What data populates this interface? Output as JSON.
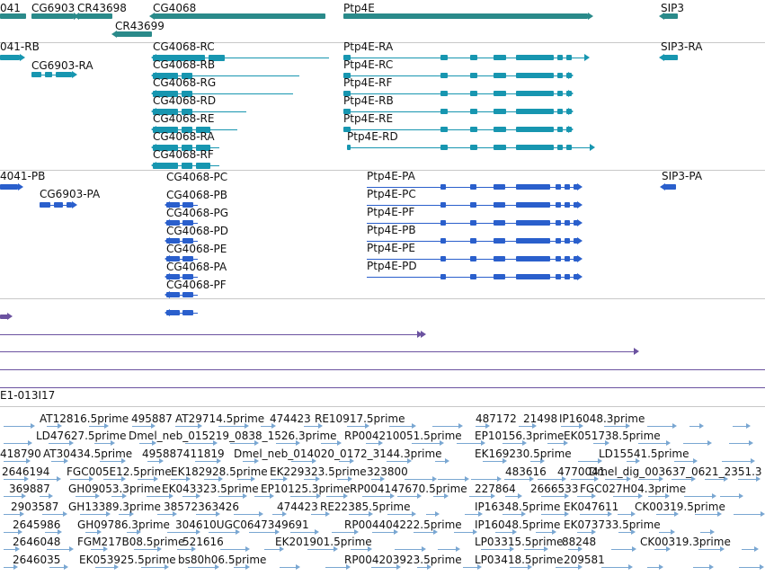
{
  "colors": {
    "gene": "#2a8a8a",
    "mrna": "#1796b0",
    "protein": "#2a5fcc",
    "purple": "#6b52a0",
    "est": "#7aa7d2"
  },
  "genes": [
    {
      "label": "041"
    },
    {
      "label": "CG6903"
    },
    {
      "label": "CR43698"
    },
    {
      "label": "CR43699"
    },
    {
      "label": "CG4068"
    },
    {
      "label": "Ptp4E"
    },
    {
      "label": "SIP3"
    }
  ],
  "transcripts": [
    {
      "label": "041-RB"
    },
    {
      "label": "CG6903-RA"
    },
    {
      "label": "CG4068-RC"
    },
    {
      "label": "CG4068-RB"
    },
    {
      "label": "CG4068-RG"
    },
    {
      "label": "CG4068-RD"
    },
    {
      "label": "CG4068-RE"
    },
    {
      "label": "CG4068-RA"
    },
    {
      "label": "CG4068-RF"
    },
    {
      "label": "Ptp4E-RA"
    },
    {
      "label": "Ptp4E-RC"
    },
    {
      "label": "Ptp4E-RF"
    },
    {
      "label": "Ptp4E-RB"
    },
    {
      "label": "Ptp4E-RE"
    },
    {
      "label": "Ptp4E-RD"
    },
    {
      "label": "SIP3-RA"
    }
  ],
  "proteins": [
    {
      "label": "4041-PB"
    },
    {
      "label": "CG6903-PA"
    },
    {
      "label": "CG4068-PC"
    },
    {
      "label": "CG4068-PB"
    },
    {
      "label": "CG4068-PG"
    },
    {
      "label": "CG4068-PD"
    },
    {
      "label": "CG4068-PE"
    },
    {
      "label": "CG4068-PA"
    },
    {
      "label": "CG4068-PF"
    },
    {
      "label": "Ptp4E-PA"
    },
    {
      "label": "Ptp4E-PC"
    },
    {
      "label": "Ptp4E-PF"
    },
    {
      "label": "Ptp4E-PB"
    },
    {
      "label": "Ptp4E-PE"
    },
    {
      "label": "Ptp4E-PD"
    },
    {
      "label": "SIP3-PA"
    }
  ],
  "clone_label": "E1-013I17",
  "ests": [
    {
      "label": "AT12816.5prime"
    },
    {
      "label": "495887"
    },
    {
      "label": "AT29714.5prime"
    },
    {
      "label": "474423"
    },
    {
      "label": "RE10917.5prime"
    },
    {
      "label": "487172"
    },
    {
      "label": "21498"
    },
    {
      "label": "IP16048.3prime"
    },
    {
      "label": "LD47627.5prime"
    },
    {
      "label": "Dmel_neb_015219_0838_1526.3prime"
    },
    {
      "label": "RP004210051.5prime"
    },
    {
      "label": "EP10156.3prime"
    },
    {
      "label": "EK051738.5prime"
    },
    {
      "label": "418790"
    },
    {
      "label": "AT30434.5prime"
    },
    {
      "label": "495887411819"
    },
    {
      "label": "Dmel_neb_014020_0172_3144.3prime"
    },
    {
      "label": "EK169230.5prime"
    },
    {
      "label": "LD15541.5prime"
    },
    {
      "label": "2646194"
    },
    {
      "label": "FGC005E12.5prime"
    },
    {
      "label": "EK182928.5prime"
    },
    {
      "label": "EK229323.5prime"
    },
    {
      "label": "323800"
    },
    {
      "label": "483616"
    },
    {
      "label": "4770041"
    },
    {
      "label": "Dmel_dig_003637_0621_2351.3"
    },
    {
      "label": "369887"
    },
    {
      "label": "GH09053.3prime"
    },
    {
      "label": "EK043323.5prime"
    },
    {
      "label": "EP10125.3prime"
    },
    {
      "label": "RP004147670.5prime"
    },
    {
      "label": "227864"
    },
    {
      "label": "2666533"
    },
    {
      "label": "FGC027H04.3prime"
    },
    {
      "label": "2903587"
    },
    {
      "label": "GH13389.3prime"
    },
    {
      "label": "38572363426"
    },
    {
      "label": "474423"
    },
    {
      "label": "RE22385.5prime"
    },
    {
      "label": "IP16348.5prime"
    },
    {
      "label": "EK047611"
    },
    {
      "label": "CK00319.5prime"
    },
    {
      "label": "2645986"
    },
    {
      "label": "GH09786.3prime"
    },
    {
      "label": "304610UGC0647349691"
    },
    {
      "label": "RP004404222.5prime"
    },
    {
      "label": "IP16048.5prime"
    },
    {
      "label": "EK073733.5prime"
    },
    {
      "label": "2646048"
    },
    {
      "label": "FGM217B08.5prime"
    },
    {
      "label": "521616"
    },
    {
      "label": "EK201901.5prime"
    },
    {
      "label": "LP03315.5prime"
    },
    {
      "label": "88248"
    },
    {
      "label": "CK00319.3prime"
    },
    {
      "label": "2646035"
    },
    {
      "label": "EK053925.5prime"
    },
    {
      "label": "bs80h06.5prime"
    },
    {
      "label": "RP004203923.5prime"
    },
    {
      "label": "LP03418.5prime"
    },
    {
      "label": "209581"
    }
  ]
}
